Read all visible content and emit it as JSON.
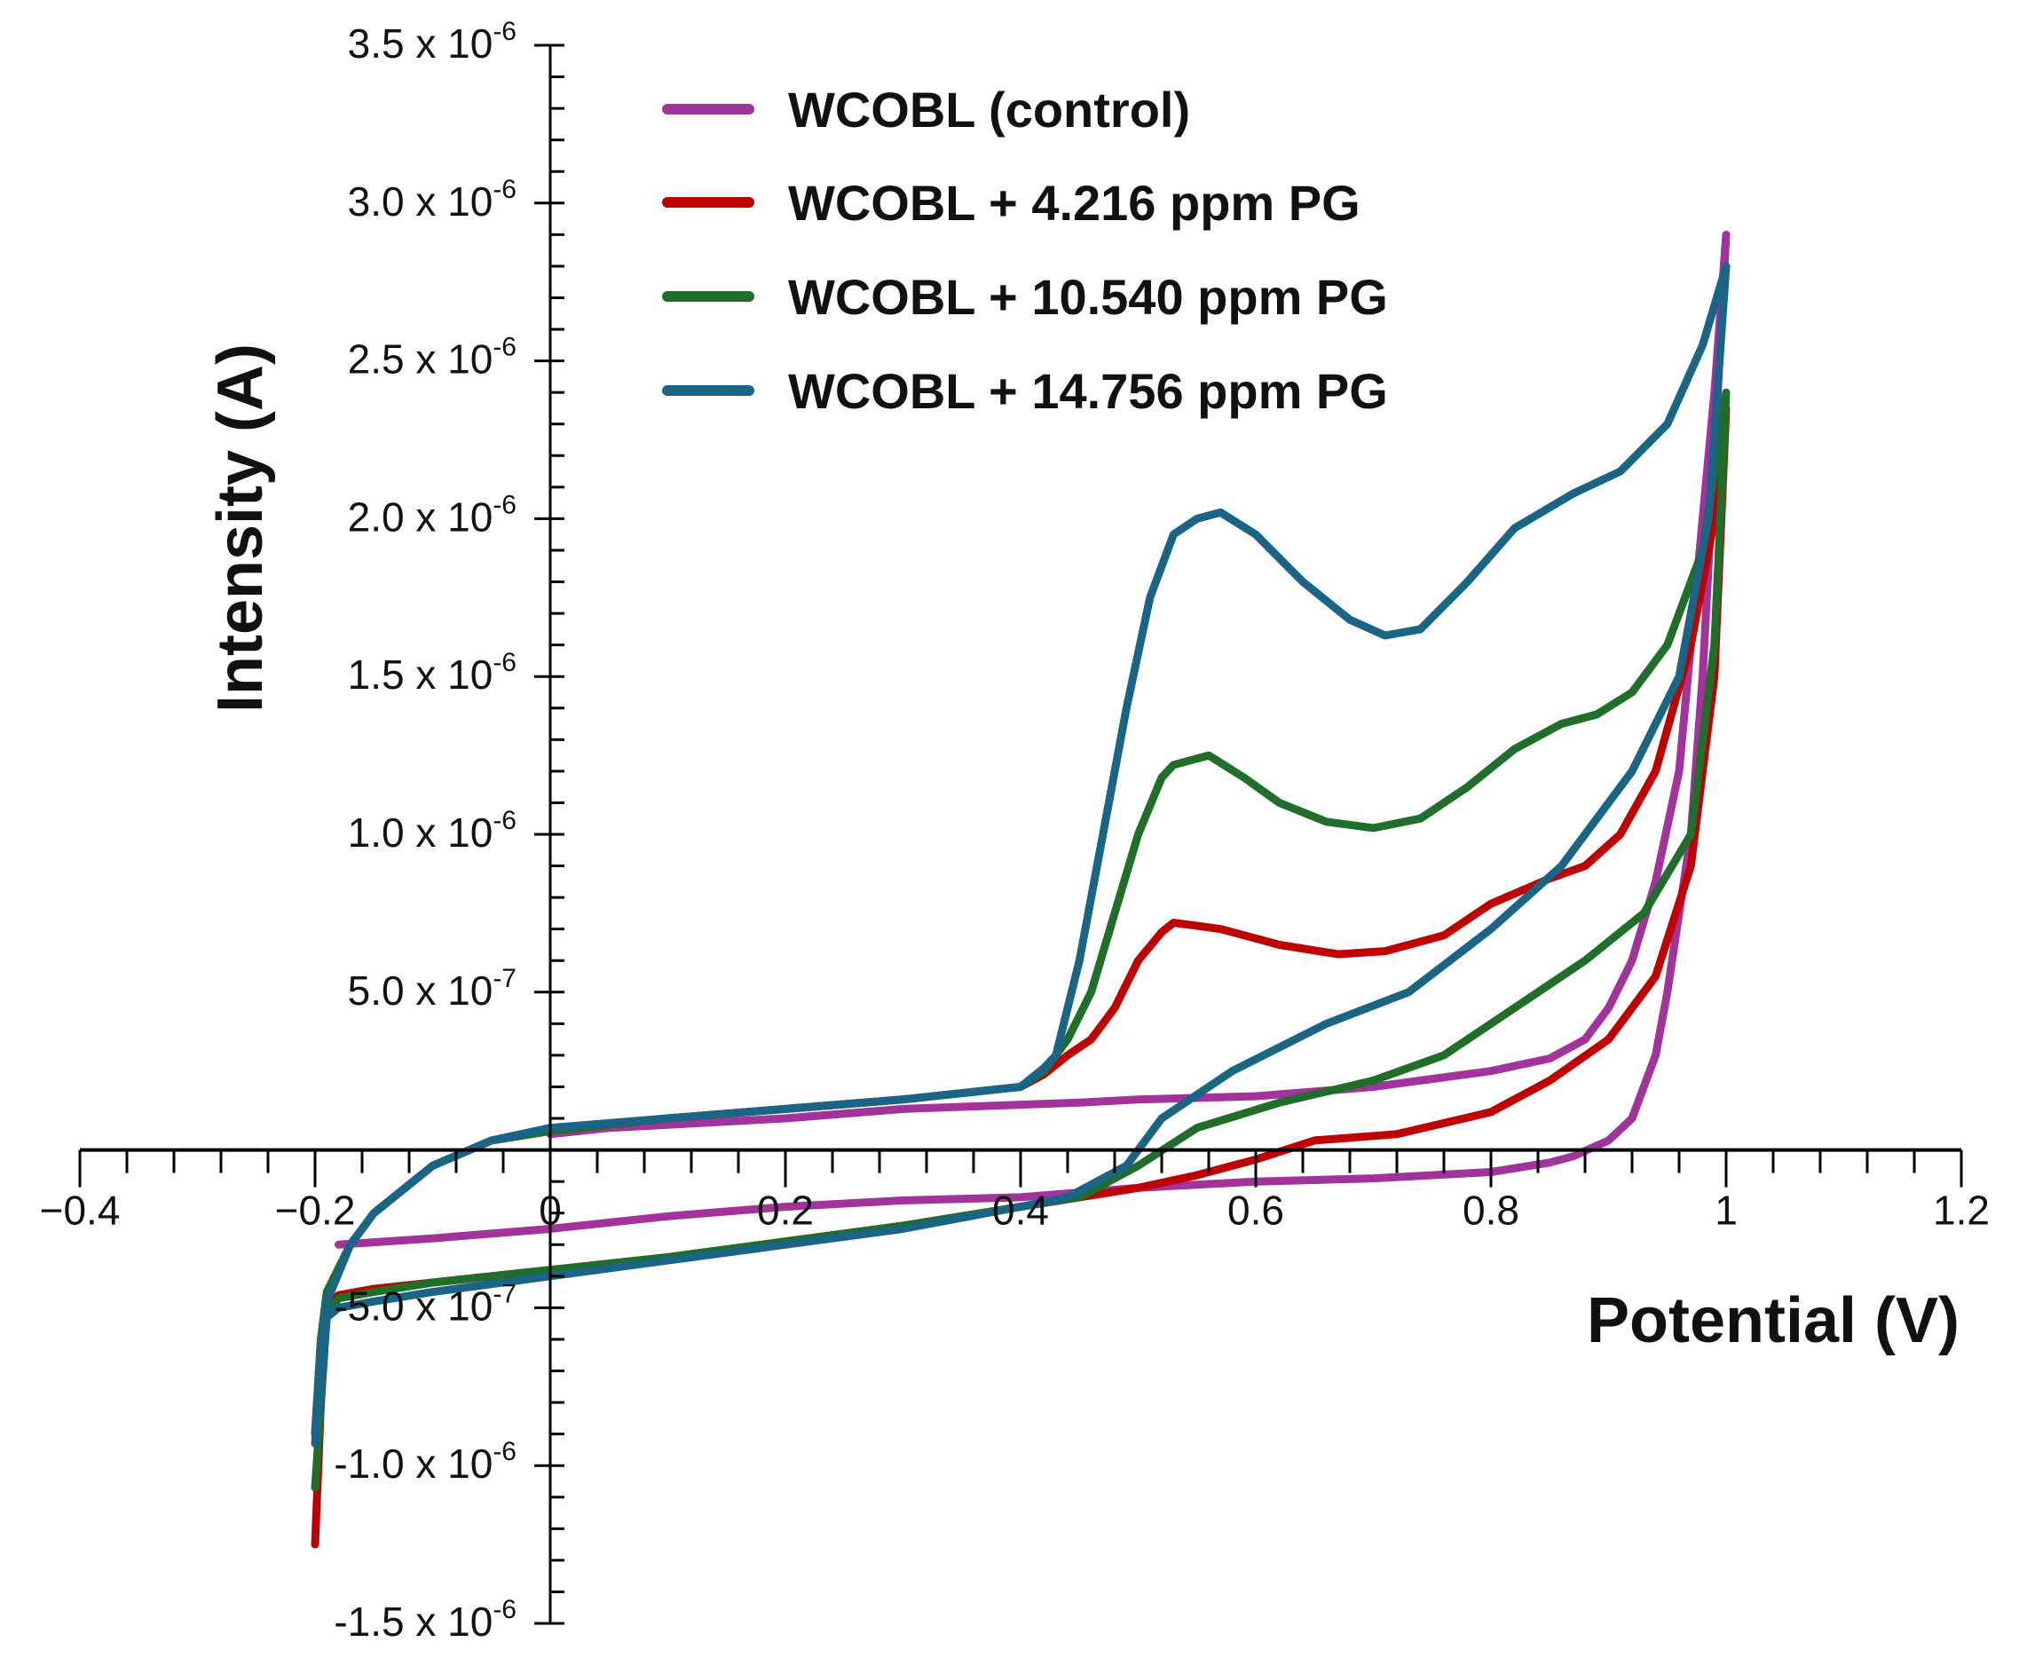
{
  "chart_data": {
    "type": "line",
    "title": "",
    "xlabel": "Potential (V)",
    "ylabel": "Intensity (A)",
    "xlim": [
      -0.4,
      1.2
    ],
    "ylim": [
      -1.5e-06,
      3.5e-06
    ],
    "grid": false,
    "legend_position": "top-center",
    "x_ticks": [
      -0.4,
      -0.2,
      0,
      0.2,
      0.4,
      0.6,
      0.8,
      1,
      1.2
    ],
    "x_tick_labels": [
      "−0.4",
      "−0.2",
      "0",
      "0.2",
      "0.4",
      "0.6",
      "0.8",
      "1",
      "1.2"
    ],
    "y_ticks": [
      3.5e-06,
      3e-06,
      2.5e-06,
      2e-06,
      1.5e-06,
      1e-06,
      5e-07,
      -5e-07,
      -1e-06,
      -1.5e-06
    ],
    "y_tick_labels": [
      {
        "mantissa": "3.5 x 10",
        "exp": "-6"
      },
      {
        "mantissa": "3.0 x 10",
        "exp": "-6"
      },
      {
        "mantissa": "2.5 x 10",
        "exp": "-6"
      },
      {
        "mantissa": "2.0 x 10",
        "exp": "-6"
      },
      {
        "mantissa": "1.5 x 10",
        "exp": "-6"
      },
      {
        "mantissa": "1.0 x 10",
        "exp": "-6"
      },
      {
        "mantissa": "5.0 x 10",
        "exp": "-7"
      },
      {
        "mantissa": "-5.0 x 10",
        "exp": "-7"
      },
      {
        "mantissa": "-1.0 x 10",
        "exp": "-6"
      },
      {
        "mantissa": "-1.5 x 10",
        "exp": "-6"
      }
    ],
    "y_unit": 1e-06,
    "series": [
      {
        "name": "WCOBL (control)",
        "color": "#a2339b",
        "x": [
          -0.18,
          -0.1,
          0,
          0.1,
          0.2,
          0.3,
          0.4,
          0.5,
          0.6,
          0.7,
          0.8,
          0.85,
          0.87,
          0.9,
          0.92,
          0.94,
          0.95,
          0.97,
          0.98,
          0.99,
          1.0,
          1.0,
          0.99,
          0.98,
          0.96,
          0.94,
          0.92,
          0.9,
          0.88,
          0.85,
          0.8,
          0.7,
          0.6,
          0.5,
          0.45,
          0.3,
          0.2,
          0.1,
          0.05,
          0
        ],
        "y": [
          -0.3,
          -0.28,
          -0.25,
          -0.21,
          -0.18,
          -0.16,
          -0.15,
          -0.12,
          -0.1,
          -0.09,
          -0.07,
          -0.04,
          -0.02,
          0.03,
          0.1,
          0.3,
          0.5,
          1.0,
          1.5,
          2.2,
          2.9,
          2.9,
          2.4,
          2.0,
          1.2,
          0.85,
          0.6,
          0.45,
          0.35,
          0.29,
          0.25,
          0.2,
          0.17,
          0.16,
          0.15,
          0.13,
          0.1,
          0.08,
          0.07,
          0.05
        ]
      },
      {
        "name": "WCOBL + 4.216 ppm PG",
        "color": "#c00000",
        "x": [
          -0.2,
          -0.195,
          -0.19,
          -0.17,
          -0.15,
          -0.1,
          -0.05,
          0,
          0.1,
          0.2,
          0.3,
          0.4,
          0.42,
          0.44,
          0.46,
          0.48,
          0.5,
          0.52,
          0.53,
          0.55,
          0.57,
          0.6,
          0.62,
          0.67,
          0.71,
          0.76,
          0.8,
          0.85,
          0.88,
          0.91,
          0.94,
          0.97,
          0.99,
          1.0,
          1.0,
          0.99,
          0.97,
          0.94,
          0.9,
          0.85,
          0.8,
          0.72,
          0.65,
          0.6,
          0.55,
          0.5,
          0.45,
          0.4,
          0.3,
          0.2,
          0.1,
          0,
          -0.1,
          -0.15,
          -0.18,
          -0.19,
          -0.195,
          -0.2
        ],
        "y": [
          -0.9,
          -0.6,
          -0.45,
          -0.3,
          -0.2,
          -0.05,
          0.03,
          0.06,
          0.1,
          0.13,
          0.16,
          0.2,
          0.24,
          0.3,
          0.35,
          0.45,
          0.6,
          0.69,
          0.72,
          0.71,
          0.7,
          0.67,
          0.65,
          0.62,
          0.63,
          0.68,
          0.78,
          0.86,
          0.9,
          1.0,
          1.2,
          1.6,
          2.0,
          2.35,
          2.35,
          1.5,
          0.9,
          0.55,
          0.35,
          0.22,
          0.12,
          0.05,
          0.03,
          -0.03,
          -0.08,
          -0.12,
          -0.15,
          -0.18,
          -0.24,
          -0.29,
          -0.34,
          -0.38,
          -0.42,
          -0.44,
          -0.46,
          -0.5,
          -0.8,
          -1.25
        ]
      },
      {
        "name": "WCOBL + 10.540 ppm PG",
        "color": "#1f6e2a",
        "x": [
          -0.2,
          -0.195,
          -0.19,
          -0.17,
          -0.15,
          -0.1,
          -0.05,
          0,
          0.1,
          0.2,
          0.3,
          0.4,
          0.42,
          0.44,
          0.46,
          0.48,
          0.5,
          0.52,
          0.53,
          0.56,
          0.59,
          0.62,
          0.66,
          0.7,
          0.74,
          0.78,
          0.82,
          0.86,
          0.89,
          0.92,
          0.95,
          0.98,
          1.0,
          1.0,
          0.99,
          0.97,
          0.93,
          0.88,
          0.82,
          0.76,
          0.7,
          0.62,
          0.55,
          0.5,
          0.45,
          0.4,
          0.3,
          0.2,
          0.1,
          0,
          -0.1,
          -0.15,
          -0.18,
          -0.19,
          -0.195,
          -0.2
        ],
        "y": [
          -0.9,
          -0.6,
          -0.45,
          -0.3,
          -0.2,
          -0.05,
          0.03,
          0.06,
          0.1,
          0.13,
          0.16,
          0.2,
          0.25,
          0.35,
          0.5,
          0.75,
          1.0,
          1.18,
          1.22,
          1.25,
          1.18,
          1.1,
          1.04,
          1.02,
          1.05,
          1.15,
          1.27,
          1.35,
          1.38,
          1.45,
          1.6,
          1.9,
          2.4,
          2.4,
          1.6,
          1.0,
          0.75,
          0.6,
          0.45,
          0.3,
          0.22,
          0.15,
          0.07,
          -0.05,
          -0.15,
          -0.18,
          -0.24,
          -0.29,
          -0.34,
          -0.38,
          -0.42,
          -0.45,
          -0.47,
          -0.52,
          -0.8,
          -1.07
        ]
      },
      {
        "name": "WCOBL + 14.756 ppm PG",
        "color": "#1a6585",
        "x": [
          -0.2,
          -0.195,
          -0.19,
          -0.17,
          -0.15,
          -0.1,
          -0.05,
          0,
          0.1,
          0.2,
          0.3,
          0.4,
          0.42,
          0.43,
          0.45,
          0.47,
          0.49,
          0.51,
          0.53,
          0.55,
          0.57,
          0.6,
          0.64,
          0.68,
          0.71,
          0.74,
          0.78,
          0.82,
          0.87,
          0.91,
          0.95,
          0.98,
          1.0,
          1.0,
          0.985,
          0.96,
          0.92,
          0.86,
          0.8,
          0.73,
          0.66,
          0.58,
          0.52,
          0.49,
          0.44,
          0.4,
          0.3,
          0.2,
          0.1,
          0,
          -0.1,
          -0.15,
          -0.18,
          -0.19,
          -0.195,
          -0.2
        ],
        "y": [
          -0.93,
          -0.62,
          -0.48,
          -0.3,
          -0.2,
          -0.05,
          0.03,
          0.07,
          0.1,
          0.13,
          0.16,
          0.2,
          0.26,
          0.3,
          0.6,
          1.0,
          1.4,
          1.75,
          1.95,
          2.0,
          2.02,
          1.95,
          1.8,
          1.68,
          1.63,
          1.65,
          1.8,
          1.97,
          2.08,
          2.15,
          2.3,
          2.55,
          2.8,
          2.8,
          2.0,
          1.5,
          1.2,
          0.9,
          0.7,
          0.5,
          0.4,
          0.25,
          0.1,
          -0.05,
          -0.15,
          -0.18,
          -0.25,
          -0.3,
          -0.35,
          -0.4,
          -0.45,
          -0.48,
          -0.5,
          -0.53,
          -0.75,
          -0.93
        ]
      }
    ]
  }
}
